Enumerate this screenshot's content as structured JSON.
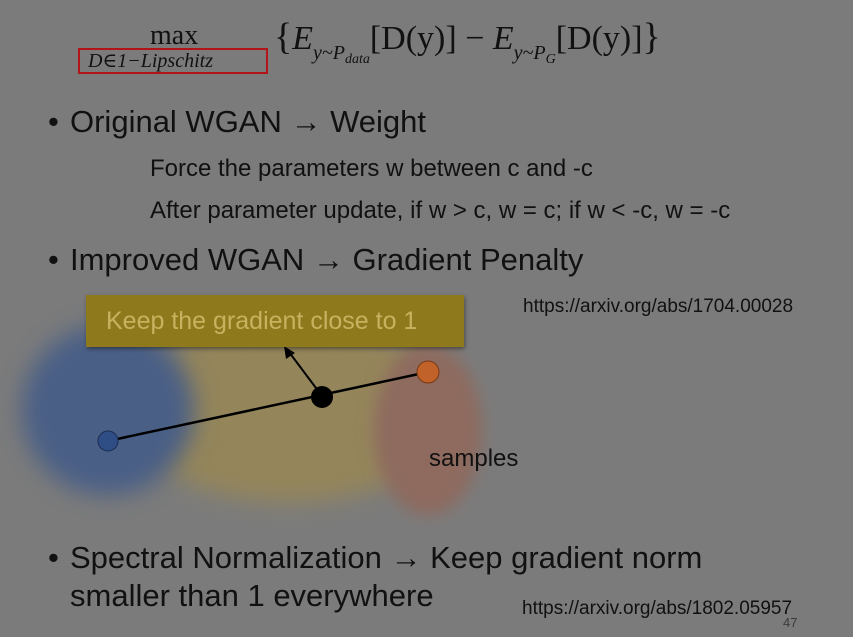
{
  "formula": {
    "operator": "max",
    "constraint": "D∈1−Lipschitz",
    "open_brace": "{",
    "e1": "E",
    "e1_sub": "y~P",
    "e1_subsub": "data",
    "d1": "[D(y)]",
    "minus": " − ",
    "e2": "E",
    "e2_sub": "y~P",
    "e2_subsub": "G",
    "d2": "[D(y)]",
    "close_brace": "}"
  },
  "bullets": [
    {
      "text": "Original WGAN → Weight",
      "sublines": [
        "Force the parameters w between c and -c",
        "After parameter update, if w > c, w = c; if w < -c, w = -c"
      ]
    },
    {
      "text": "Improved WGAN → Gradient Penalty"
    },
    {
      "line1": "Spectral Normalization → Keep gradient norm",
      "line2": "smaller than 1 everywhere"
    }
  ],
  "bullet_symbol": "•",
  "urls": {
    "gp": "https://arxiv.org/abs/1704.00028",
    "sn": "https://arxiv.org/abs/1802.05957"
  },
  "diagram": {
    "callout": "Keep the gradient close to 1",
    "samples_label": "samples",
    "colors": {
      "real_region": "#4a5e86",
      "gen_region": "#94855a",
      "sample_region": "#8e6a5e",
      "blue_point": "#2f4e86",
      "orange_point": "#c0622a",
      "mid_point": "#000000",
      "callout_fill": "#8e7a1c",
      "callout_text": "#c8b260"
    }
  },
  "page_number": "47"
}
